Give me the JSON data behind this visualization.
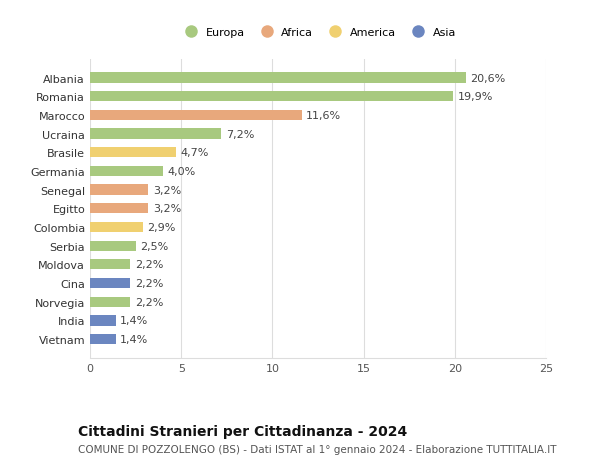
{
  "countries": [
    "Albania",
    "Romania",
    "Marocco",
    "Ucraina",
    "Brasile",
    "Germania",
    "Senegal",
    "Egitto",
    "Colombia",
    "Serbia",
    "Moldova",
    "Cina",
    "Norvegia",
    "India",
    "Vietnam"
  ],
  "values": [
    20.6,
    19.9,
    11.6,
    7.2,
    4.7,
    4.0,
    3.2,
    3.2,
    2.9,
    2.5,
    2.2,
    2.2,
    2.2,
    1.4,
    1.4
  ],
  "labels": [
    "20,6%",
    "19,9%",
    "11,6%",
    "7,2%",
    "4,7%",
    "4,0%",
    "3,2%",
    "3,2%",
    "2,9%",
    "2,5%",
    "2,2%",
    "2,2%",
    "2,2%",
    "1,4%",
    "1,4%"
  ],
  "continents": [
    "Europa",
    "Europa",
    "Africa",
    "Europa",
    "America",
    "Europa",
    "Africa",
    "Africa",
    "America",
    "Europa",
    "Europa",
    "Asia",
    "Europa",
    "Asia",
    "Asia"
  ],
  "continent_colors": {
    "Europa": "#a8c97f",
    "Africa": "#e8a87c",
    "America": "#f0d070",
    "Asia": "#6b86c0"
  },
  "legend_order": [
    "Europa",
    "Africa",
    "America",
    "Asia"
  ],
  "xlim": [
    0,
    25
  ],
  "xticks": [
    0,
    5,
    10,
    15,
    20,
    25
  ],
  "title": "Cittadini Stranieri per Cittadinanza - 2024",
  "subtitle": "COMUNE DI POZZOLENGO (BS) - Dati ISTAT al 1° gennaio 2024 - Elaborazione TUTTITALIA.IT",
  "background_color": "#ffffff",
  "grid_color": "#dddddd",
  "bar_height": 0.55,
  "label_fontsize": 8,
  "title_fontsize": 10,
  "subtitle_fontsize": 7.5,
  "tick_fontsize": 8
}
